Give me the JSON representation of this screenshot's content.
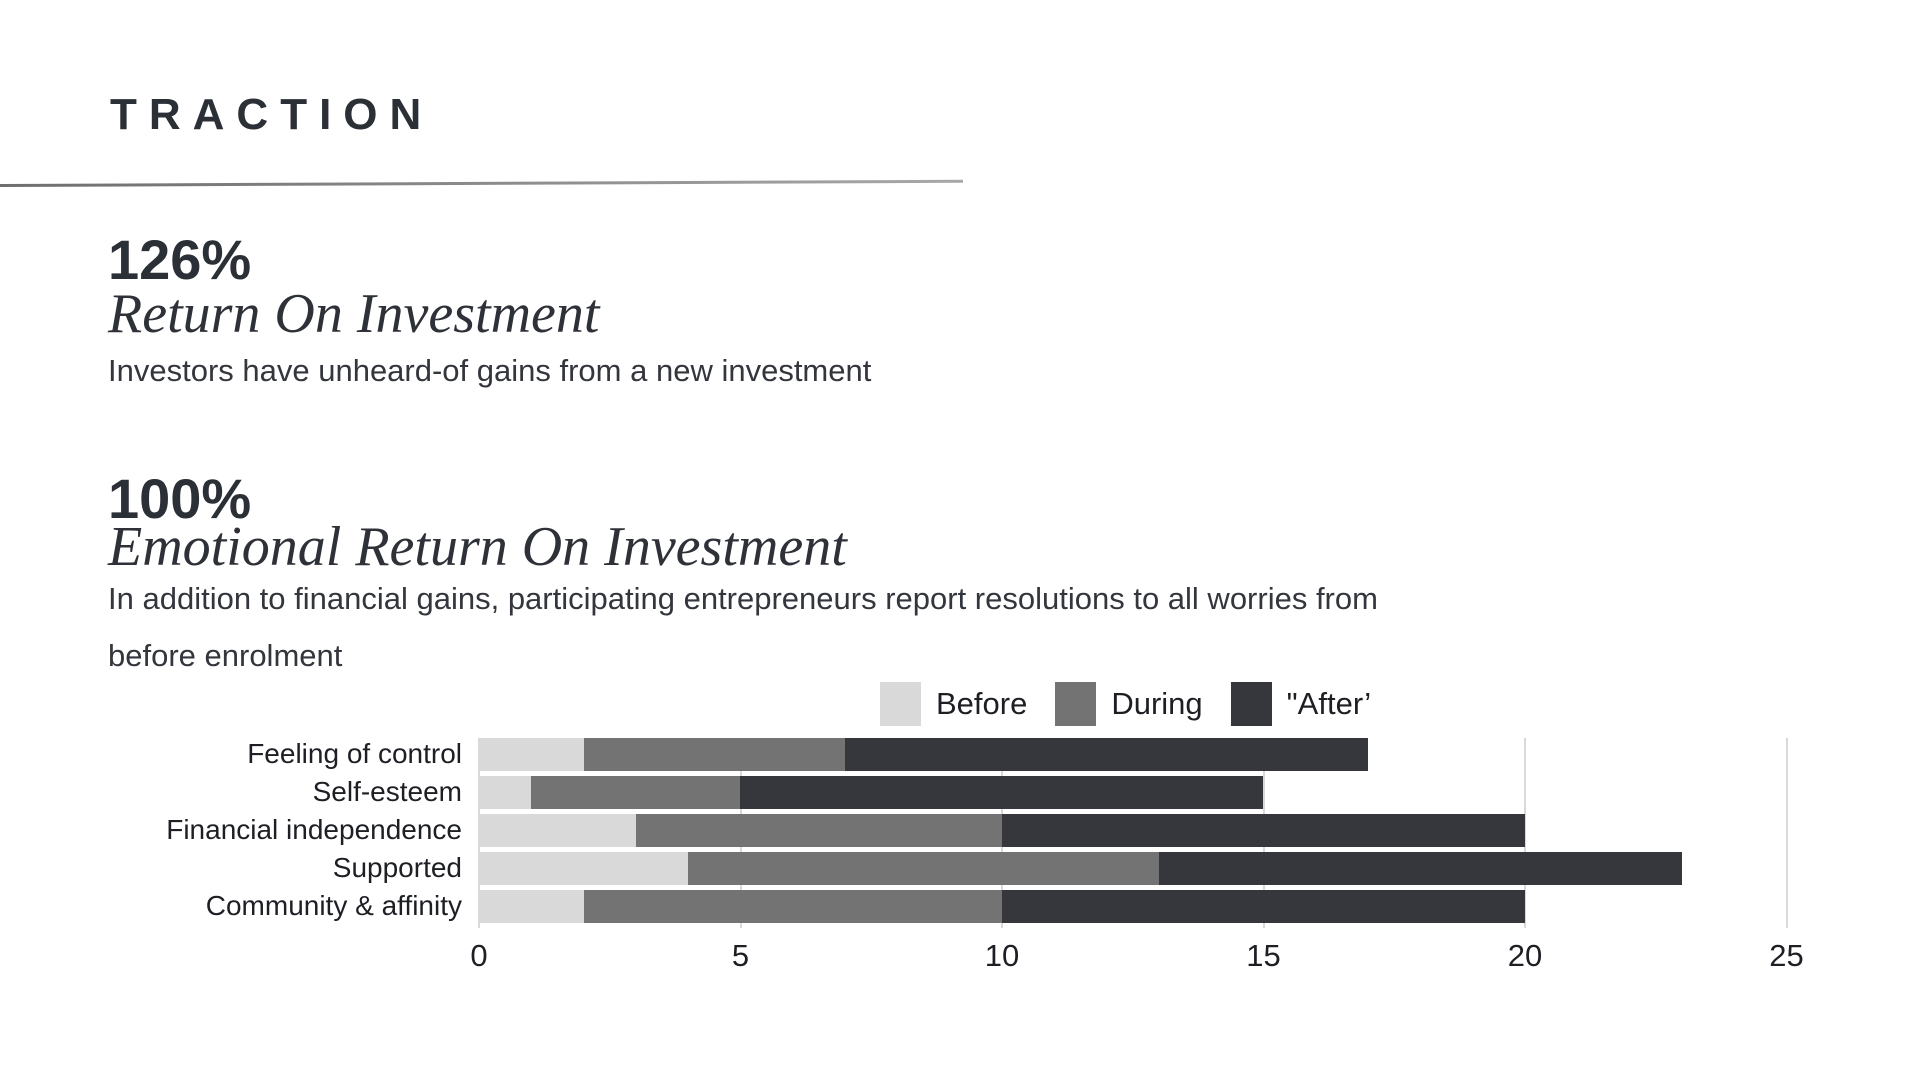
{
  "header": {
    "kicker": "TRACTION"
  },
  "stats": [
    {
      "value": "126%",
      "title": "Return On Investment",
      "description": "Investors have unheard-of gains from a new investment"
    },
    {
      "value": "100%",
      "title": "Emotional Return On Investment",
      "description": "In addition to financial gains, participating entrepreneurs report resolutions to all worries from\nbefore enrolment"
    }
  ],
  "chart_data": {
    "type": "bar",
    "orientation": "horizontal",
    "stacked": true,
    "categories": [
      "Feeling of control",
      "Self-esteem",
      "Financial independence",
      "Supported",
      "Community & affinity"
    ],
    "series": [
      {
        "name": "Before",
        "color": "#d9d9d9",
        "values": [
          2,
          1,
          3,
          4,
          2
        ]
      },
      {
        "name": "During",
        "color": "#737373",
        "values": [
          5,
          4,
          7,
          9,
          8
        ]
      },
      {
        "name": "\"After’",
        "color": "#35373d",
        "values": [
          10,
          10,
          10,
          10,
          10
        ]
      }
    ],
    "totals": [
      17,
      15,
      20,
      23,
      20
    ],
    "xticks": [
      0,
      5,
      10,
      15,
      20,
      25
    ],
    "xlim": [
      0,
      25
    ],
    "grid": "vertical",
    "gridline_color": "#d9d9d9",
    "legend_position": "top"
  }
}
